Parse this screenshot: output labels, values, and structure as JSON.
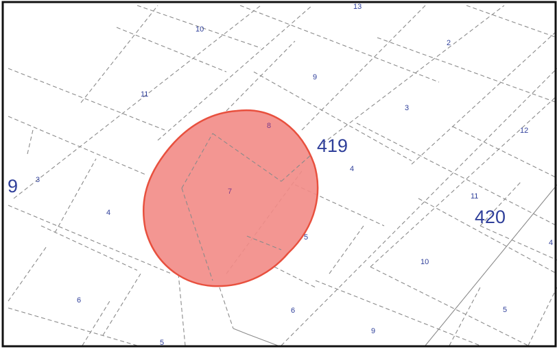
{
  "map": {
    "highlight": {
      "fill": "#f28b86",
      "stroke": "#e8503e"
    },
    "line_color": "#8a8a8a",
    "label_color": "#2f3f9a",
    "frame_color": "#111111",
    "block_numbers": {
      "b419": "419",
      "b420": "420",
      "b9_partial": "9"
    },
    "lot_numbers": {
      "top_13": "13",
      "l10_top": "10",
      "l2": "2",
      "l11_left": "11",
      "l9_mid": "9",
      "l3_mid": "3",
      "l12": "12",
      "l8": "8",
      "l3_left": "3",
      "l4_mid": "4",
      "l7": "7",
      "l4_left": "4",
      "l11_right": "11",
      "l5_mid": "5",
      "l4_right": "4",
      "l10_right": "10",
      "l6_left": "6",
      "l6_mid": "6",
      "l5_right": "5",
      "l9_bottom": "9",
      "l5_bottom": "5"
    }
  }
}
